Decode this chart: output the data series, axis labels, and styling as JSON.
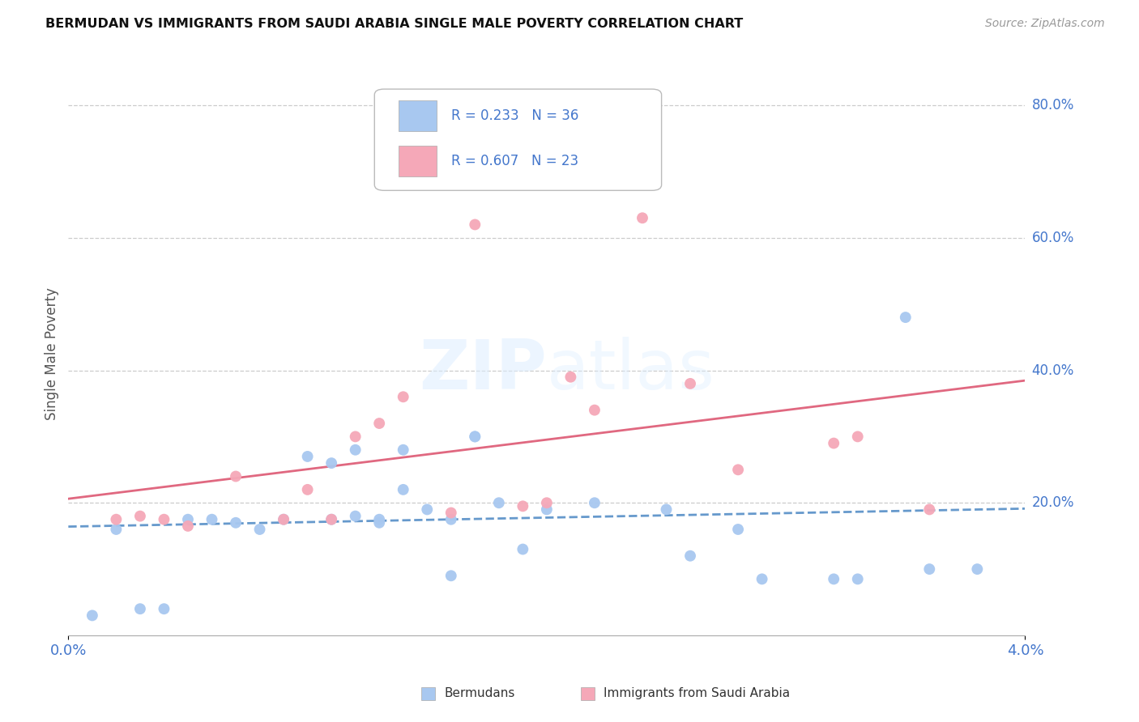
{
  "title": "BERMUDAN VS IMMIGRANTS FROM SAUDI ARABIA SINGLE MALE POVERTY CORRELATION CHART",
  "source": "Source: ZipAtlas.com",
  "ylabel": "Single Male Poverty",
  "background_color": "#ffffff",
  "bermudans_color": "#a8c8f0",
  "saudi_color": "#f5a8b8",
  "trend_blue_color": "#6699cc",
  "trend_pink_color": "#e06880",
  "legend_R_bermudans": "R = 0.233",
  "legend_N_bermudans": "N = 36",
  "legend_R_saudi": "R = 0.607",
  "legend_N_saudi": "N = 23",
  "bermudans_x": [
    0.001,
    0.002,
    0.003,
    0.004,
    0.005,
    0.006,
    0.007,
    0.008,
    0.009,
    0.01,
    0.011,
    0.011,
    0.012,
    0.012,
    0.013,
    0.013,
    0.014,
    0.014,
    0.015,
    0.016,
    0.016,
    0.017,
    0.017,
    0.018,
    0.019,
    0.02,
    0.022,
    0.025,
    0.026,
    0.028,
    0.029,
    0.032,
    0.033,
    0.035,
    0.036,
    0.038
  ],
  "bermudans_y": [
    0.03,
    0.16,
    0.04,
    0.04,
    0.175,
    0.175,
    0.17,
    0.16,
    0.175,
    0.27,
    0.26,
    0.175,
    0.28,
    0.18,
    0.175,
    0.17,
    0.22,
    0.28,
    0.19,
    0.175,
    0.09,
    0.3,
    0.3,
    0.2,
    0.13,
    0.19,
    0.2,
    0.19,
    0.12,
    0.16,
    0.085,
    0.085,
    0.085,
    0.48,
    0.1,
    0.1
  ],
  "saudi_x": [
    0.002,
    0.003,
    0.004,
    0.005,
    0.007,
    0.009,
    0.01,
    0.011,
    0.012,
    0.013,
    0.014,
    0.016,
    0.017,
    0.019,
    0.02,
    0.021,
    0.022,
    0.024,
    0.026,
    0.028,
    0.032,
    0.033,
    0.036
  ],
  "saudi_y": [
    0.175,
    0.18,
    0.175,
    0.165,
    0.24,
    0.175,
    0.22,
    0.175,
    0.3,
    0.32,
    0.36,
    0.185,
    0.62,
    0.195,
    0.2,
    0.39,
    0.34,
    0.63,
    0.38,
    0.25,
    0.29,
    0.3,
    0.19
  ],
  "xlim": [
    0.0,
    0.04
  ],
  "ylim": [
    0.0,
    0.85
  ],
  "right_ytick_vals": [
    0.2,
    0.4,
    0.6,
    0.8
  ],
  "right_ytick_labels": [
    "20.0%",
    "40.0%",
    "60.0%",
    "80.0%"
  ],
  "xtick_vals": [
    0.0,
    0.04
  ],
  "xtick_labels": [
    "0.0%",
    "4.0%"
  ]
}
